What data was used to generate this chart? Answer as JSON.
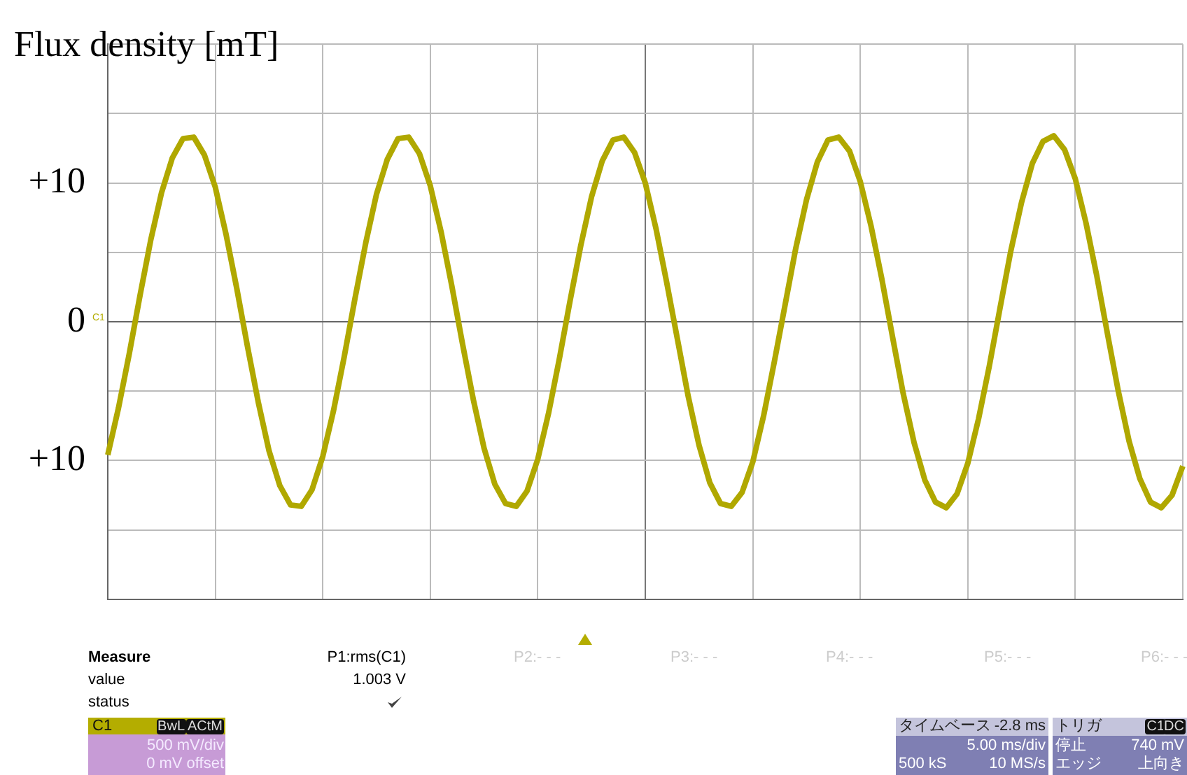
{
  "chart_data": {
    "type": "line",
    "ylabel": "Flux density [mT]",
    "categories": [
      null,
      null,
      null,
      null,
      null,
      null,
      null,
      null,
      null,
      null,
      null,
      null,
      null,
      null,
      null,
      null,
      null,
      null,
      null,
      null,
      null,
      null,
      null,
      null,
      null,
      null,
      null,
      null,
      null,
      null,
      null,
      null,
      null,
      null,
      null,
      null,
      null,
      null,
      null,
      null,
      null,
      null,
      null,
      null,
      null,
      null,
      null,
      null,
      null,
      null,
      null,
      null,
      null,
      null,
      null,
      null,
      null,
      null,
      null,
      null,
      null,
      null,
      null,
      null,
      null,
      null,
      null,
      null,
      null,
      null,
      null,
      null,
      null,
      null,
      null,
      null,
      null,
      null,
      null,
      null,
      null,
      null,
      null,
      null,
      null,
      null,
      null,
      null,
      null,
      null,
      null,
      null,
      null,
      null,
      null,
      null,
      null,
      null,
      null,
      null,
      null
    ],
    "series": [
      {
        "color": "#b0a800",
        "values": [
          -9.6,
          -6.2,
          -2.3,
          1.9,
          5.9,
          9.3,
          11.8,
          13.2,
          13.3,
          12.0,
          9.7,
          6.3,
          2.4,
          -1.8,
          -5.8,
          -9.3,
          -11.8,
          -13.2,
          -13.3,
          -12.1,
          -9.7,
          -6.4,
          -2.5,
          1.7,
          5.7,
          9.2,
          11.7,
          13.2,
          13.3,
          12.1,
          9.8,
          6.5,
          2.6,
          -1.6,
          -5.6,
          -9.1,
          -11.7,
          -13.1,
          -13.3,
          -12.2,
          -9.9,
          -6.6,
          -2.7,
          1.5,
          5.5,
          9.0,
          11.6,
          13.1,
          13.3,
          12.2,
          10.0,
          6.7,
          2.8,
          -1.3,
          -5.4,
          -8.9,
          -11.6,
          -13.1,
          -13.3,
          -12.3,
          -10.1,
          -6.8,
          -2.9,
          1.2,
          5.3,
          8.8,
          11.5,
          13.1,
          13.3,
          12.3,
          10.1,
          6.9,
          3.1,
          -1.1,
          -5.2,
          -8.7,
          -11.4,
          -13.0,
          -13.4,
          -12.4,
          -10.2,
          -7.0,
          -3.2,
          1.0,
          5.1,
          8.6,
          11.4,
          13.0,
          13.4,
          12.4,
          10.3,
          7.1,
          3.3,
          -0.9,
          -5.0,
          -8.6,
          -11.3,
          -13.0,
          -13.4,
          -12.5,
          -10.4
        ]
      }
    ],
    "ylim": [
      -20,
      20
    ],
    "yticks": [
      {
        "value": -20,
        "label": null
      },
      {
        "value": -15,
        "label": null
      },
      {
        "value": -10,
        "label": "+10"
      },
      {
        "value": -5,
        "label": null
      },
      0,
      {
        "value": 5,
        "label": null
      },
      {
        "value": 10,
        "label": "+10"
      },
      {
        "value": 15,
        "label": null
      },
      {
        "value": 20,
        "label": null
      }
    ],
    "grid": true,
    "legend": false,
    "marker": "none",
    "line_style": "solid",
    "tick_labels": "y",
    "annotations": [
      "C1",
      "Measure",
      "P1:rms(C1)",
      "value",
      "1.003 V",
      "status",
      "P2:- - -",
      "P3:- - -",
      "P4:- - -",
      "P5:- - -",
      "P6:- - -",
      "C1",
      "BwL",
      "ACtM",
      "500 mV/div",
      "0 mV offset",
      "タイムベース",
      "-2.8 ms",
      "5.00 ms/div",
      "500 kS",
      "10 MS/s",
      "トリガ",
      "C1",
      "DC",
      "停止",
      "740 mV",
      "エッジ",
      "上向き"
    ]
  }
}
